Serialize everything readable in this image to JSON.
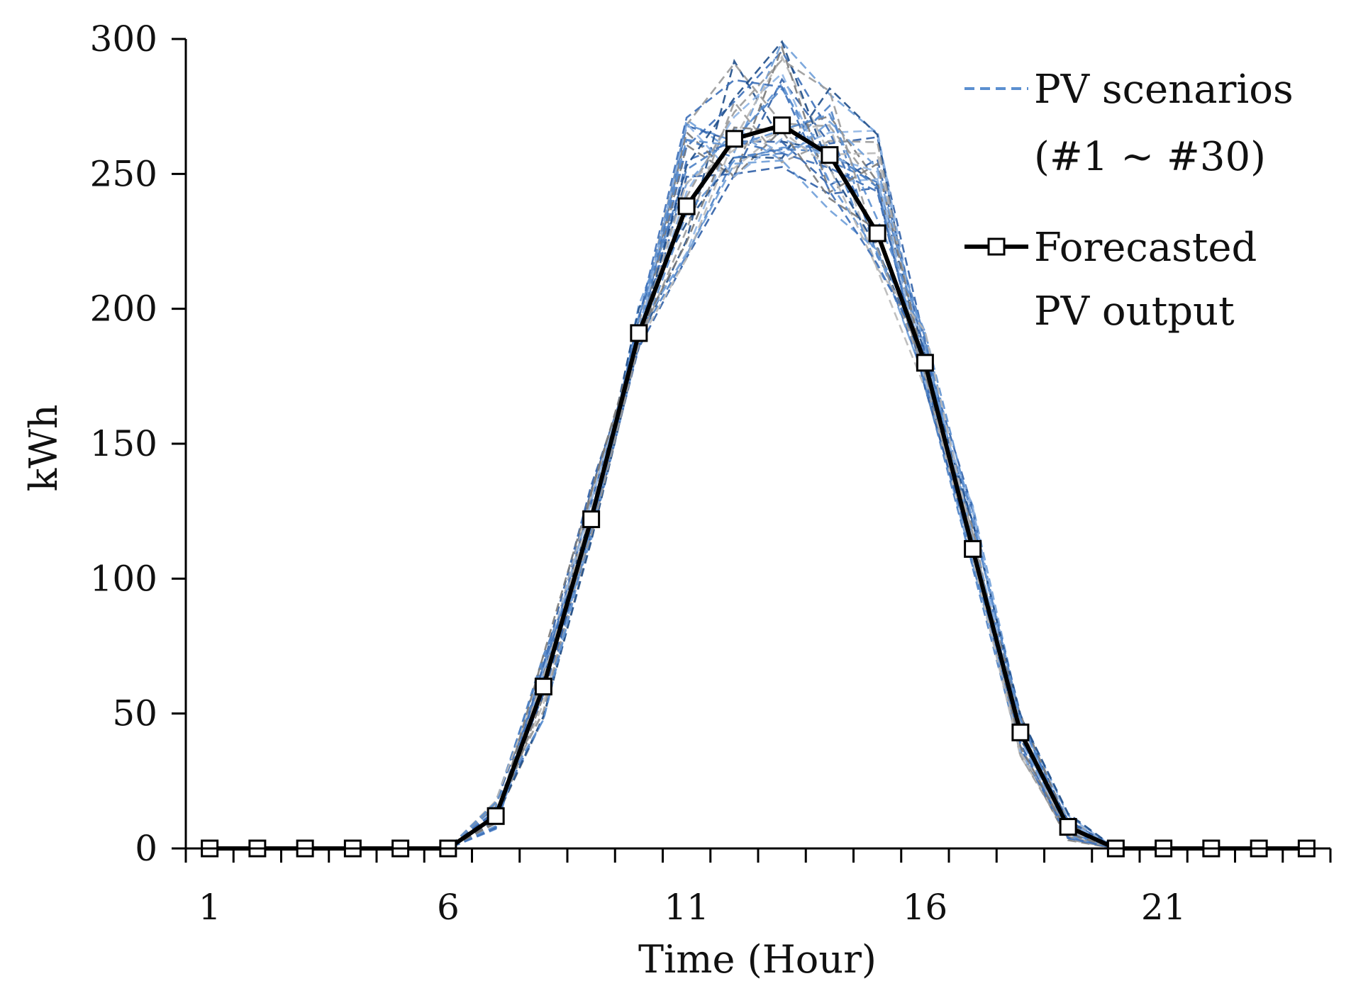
{
  "chart_data": {
    "type": "line",
    "title": "",
    "xlabel": "Time (Hour)",
    "ylabel": "kWh",
    "xlim": [
      0.5,
      24.5
    ],
    "ylim": [
      0,
      300
    ],
    "x_ticks": [
      1,
      6,
      11,
      16,
      21
    ],
    "y_ticks": [
      0,
      50,
      100,
      150,
      200,
      250,
      300
    ],
    "x": [
      1,
      2,
      3,
      4,
      5,
      6,
      7,
      8,
      9,
      10,
      11,
      12,
      13,
      14,
      15,
      16,
      17,
      18,
      19,
      20,
      21,
      22,
      23,
      24
    ],
    "legend": {
      "position": "top-right",
      "scenarios_line1": "PV scenarios",
      "scenarios_line2": "(#1 ~ #30)",
      "forecast_line1": "Forecasted",
      "forecast_line2": "PV output"
    },
    "colors": {
      "forecast": "#000000",
      "scenario_palette": [
        "#2f5fa7",
        "#4a7fc4",
        "#6f9fd8",
        "#1f4e8a",
        "#8eb4e3",
        "#5b8fd0",
        "#9a9a9a",
        "#b8b8b8",
        "#3c6fb8",
        "#7a7a7a"
      ]
    },
    "series": [
      {
        "name": "Forecasted PV output",
        "style": "solid",
        "marker": "square",
        "values": [
          0,
          0,
          0,
          0,
          0,
          0,
          12,
          60,
          122,
          191,
          238,
          263,
          268,
          257,
          228,
          180,
          111,
          43,
          8,
          0,
          0,
          0,
          0,
          0
        ]
      }
    ],
    "scenario_count": 30,
    "scenario_ranges": {
      "h7": [
        4,
        18
      ],
      "h8": [
        38,
        72
      ],
      "h9": [
        108,
        136
      ],
      "h10": [
        182,
        203
      ],
      "h11": [
        208,
        277
      ],
      "h12": [
        240,
        292
      ],
      "h13": [
        244,
        300
      ],
      "h14": [
        215,
        282
      ],
      "h15": [
        205,
        271
      ],
      "h16": [
        165,
        193
      ],
      "h17": [
        100,
        130
      ],
      "h18": [
        28,
        50
      ],
      "h19": [
        0,
        13
      ]
    }
  }
}
